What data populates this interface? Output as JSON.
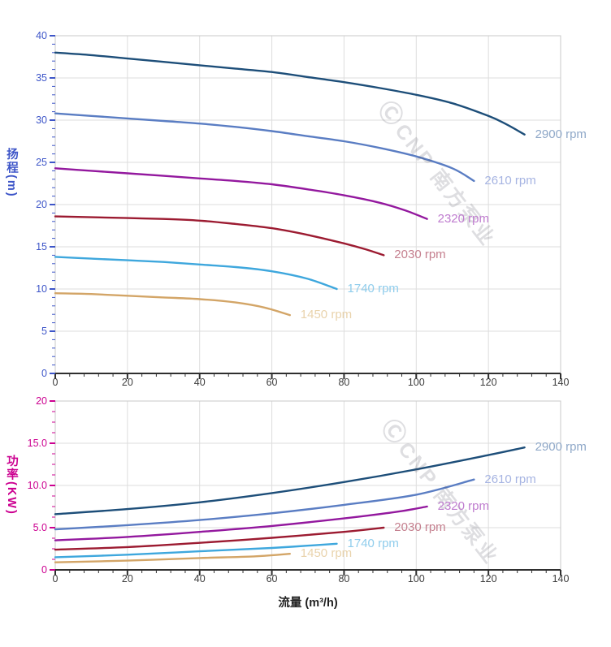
{
  "watermark": {
    "logo": "Ⓒ",
    "text": "CNP 南方泵业"
  },
  "chart_data": [
    {
      "type": "line",
      "title": "",
      "xlabel": "",
      "ylabel": "扬程(m)",
      "xlim": [
        0,
        140
      ],
      "ylim": [
        0,
        40
      ],
      "grid": true,
      "legend_position": "curve-end-labels",
      "x_ticks": [
        0,
        20,
        40,
        60,
        80,
        100,
        120,
        140
      ],
      "x_tick_labels": [
        "0",
        "20",
        "40",
        "60",
        "80",
        "100",
        "120",
        "140"
      ],
      "y_ticks": [
        0,
        5,
        10,
        15,
        20,
        25,
        30,
        35,
        40
      ],
      "y_tick_labels": [
        "0",
        "5",
        "10",
        "15",
        "20",
        "25",
        "30",
        "35",
        "40"
      ],
      "axis_accent_color": "#3d55c8",
      "series": [
        {
          "name": "2900 rpm",
          "color": "#1d4e79",
          "label_color": "#8fa8c8",
          "x": [
            0,
            10,
            20,
            30,
            40,
            50,
            60,
            70,
            80,
            90,
            100,
            110,
            120,
            125,
            130
          ],
          "y": [
            38,
            37.7,
            37.3,
            36.9,
            36.5,
            36.1,
            35.7,
            35.1,
            34.5,
            33.8,
            33,
            32,
            30.5,
            29.5,
            28.3
          ]
        },
        {
          "name": "2610 rpm",
          "color": "#5a7dc3",
          "label_color": "#a6b4e2",
          "x": [
            0,
            10,
            20,
            30,
            40,
            50,
            60,
            70,
            80,
            90,
            100,
            110,
            116
          ],
          "y": [
            30.8,
            30.5,
            30.2,
            29.9,
            29.6,
            29.2,
            28.7,
            28.1,
            27.5,
            26.7,
            25.7,
            24.3,
            22.8
          ]
        },
        {
          "name": "2320 rpm",
          "color": "#93189e",
          "label_color": "#bf7ccf",
          "x": [
            0,
            10,
            20,
            30,
            40,
            50,
            60,
            70,
            80,
            90,
            97,
            103
          ],
          "y": [
            24.3,
            24.0,
            23.7,
            23.4,
            23.1,
            22.8,
            22.4,
            21.8,
            21.1,
            20.2,
            19.3,
            18.3
          ]
        },
        {
          "name": "2030 rpm",
          "color": "#9c1b31",
          "label_color": "#c5808f",
          "x": [
            0,
            10,
            20,
            30,
            40,
            50,
            60,
            70,
            80,
            86,
            91
          ],
          "y": [
            18.6,
            18.5,
            18.4,
            18.3,
            18.1,
            17.7,
            17.2,
            16.4,
            15.4,
            14.7,
            14.0
          ]
        },
        {
          "name": "1740 rpm",
          "color": "#3ea7dd",
          "label_color": "#90cdec",
          "x": [
            0,
            10,
            20,
            30,
            40,
            50,
            60,
            70,
            78
          ],
          "y": [
            13.8,
            13.6,
            13.4,
            13.2,
            12.9,
            12.6,
            12.1,
            11.2,
            10.0
          ]
        },
        {
          "name": "1450 rpm",
          "color": "#d3a567",
          "label_color": "#e9d3ac",
          "x": [
            0,
            10,
            20,
            30,
            40,
            50,
            58,
            65
          ],
          "y": [
            9.5,
            9.4,
            9.2,
            9.0,
            8.8,
            8.4,
            7.8,
            6.9
          ]
        }
      ]
    },
    {
      "type": "line",
      "title": "",
      "xlabel": "流量 (m³/h)",
      "ylabel": "功率(KW)",
      "xlim": [
        0,
        140
      ],
      "ylim": [
        0,
        20
      ],
      "grid": true,
      "legend_position": "curve-end-labels",
      "x_ticks": [
        0,
        20,
        40,
        60,
        80,
        100,
        120,
        140
      ],
      "x_tick_labels": [
        "0",
        "20",
        "40",
        "60",
        "80",
        "100",
        "120",
        "140"
      ],
      "y_ticks": [
        0,
        5,
        10,
        15,
        20
      ],
      "y_tick_labels": [
        "0",
        "5.0",
        "10.0",
        "15.0",
        "20"
      ],
      "axis_accent_color": "#cc0090",
      "series": [
        {
          "name": "2900 rpm",
          "color": "#1d4e79",
          "label_color": "#8fa8c8",
          "x": [
            0,
            20,
            40,
            60,
            80,
            100,
            120,
            130
          ],
          "y": [
            6.6,
            7.2,
            8.0,
            9.1,
            10.4,
            11.9,
            13.6,
            14.5
          ]
        },
        {
          "name": "2610 rpm",
          "color": "#5a7dc3",
          "label_color": "#a6b4e2",
          "x": [
            0,
            20,
            40,
            60,
            80,
            100,
            116
          ],
          "y": [
            4.8,
            5.3,
            5.9,
            6.7,
            7.7,
            8.9,
            10.7
          ]
        },
        {
          "name": "2320 rpm",
          "color": "#93189e",
          "label_color": "#bf7ccf",
          "x": [
            0,
            20,
            40,
            60,
            80,
            95,
            103
          ],
          "y": [
            3.5,
            3.9,
            4.5,
            5.2,
            6.1,
            6.9,
            7.5
          ]
        },
        {
          "name": "2030 rpm",
          "color": "#9c1b31",
          "label_color": "#c5808f",
          "x": [
            0,
            20,
            40,
            60,
            80,
            91
          ],
          "y": [
            2.4,
            2.7,
            3.2,
            3.8,
            4.5,
            5.0
          ]
        },
        {
          "name": "1740 rpm",
          "color": "#3ea7dd",
          "label_color": "#90cdec",
          "x": [
            0,
            20,
            40,
            60,
            78
          ],
          "y": [
            1.5,
            1.8,
            2.2,
            2.6,
            3.1
          ]
        },
        {
          "name": "1450 rpm",
          "color": "#d3a567",
          "label_color": "#e9d3ac",
          "x": [
            0,
            20,
            40,
            55,
            65
          ],
          "y": [
            0.9,
            1.1,
            1.4,
            1.6,
            1.9
          ]
        }
      ]
    }
  ]
}
